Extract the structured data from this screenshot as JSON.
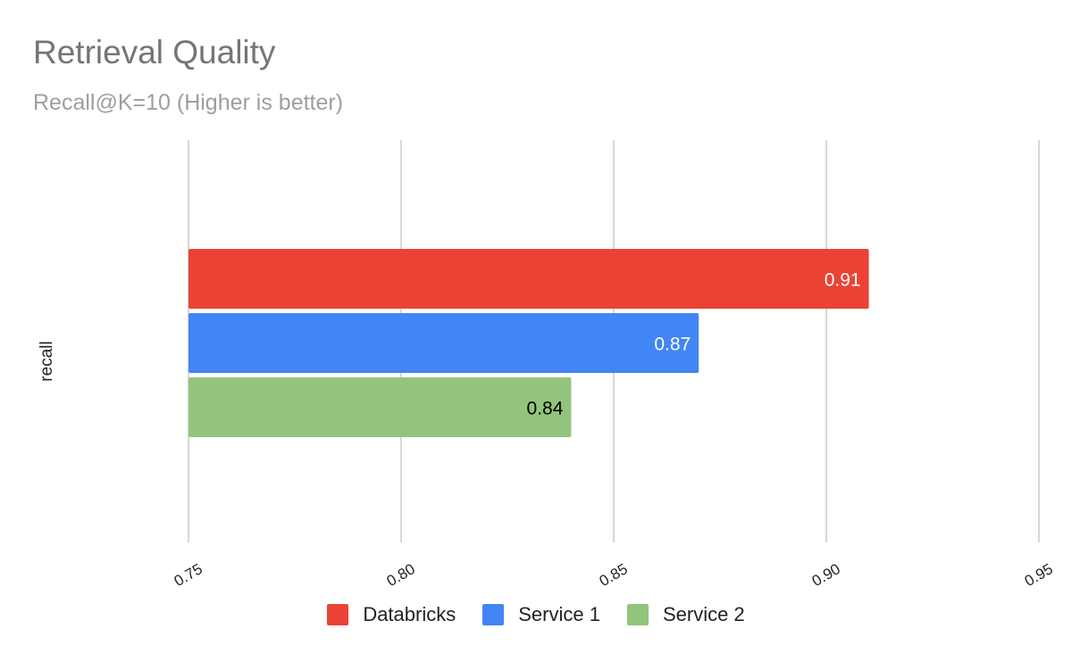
{
  "chart_data": {
    "type": "bar",
    "orientation": "horizontal",
    "title": "Retrieval Quality",
    "subtitle": "Recall@K=10 (Higher is better)",
    "xlabel": "",
    "ylabel": "recall",
    "categories": [
      "recall"
    ],
    "series": [
      {
        "name": "Databricks",
        "values": [
          0.91
        ],
        "color": "#EA4335",
        "label_color": "#ffffff"
      },
      {
        "name": "Service 1",
        "values": [
          0.87
        ],
        "color": "#4285F4",
        "label_color": "#ffffff"
      },
      {
        "name": "Service 2",
        "values": [
          0.84
        ],
        "color": "#93C47D",
        "label_color": "#000000"
      }
    ],
    "xlim": [
      0.75,
      0.95
    ],
    "xticks": [
      "0.75",
      "0.80",
      "0.85",
      "0.90",
      "0.95"
    ],
    "grid": true,
    "legend_position": "bottom"
  }
}
